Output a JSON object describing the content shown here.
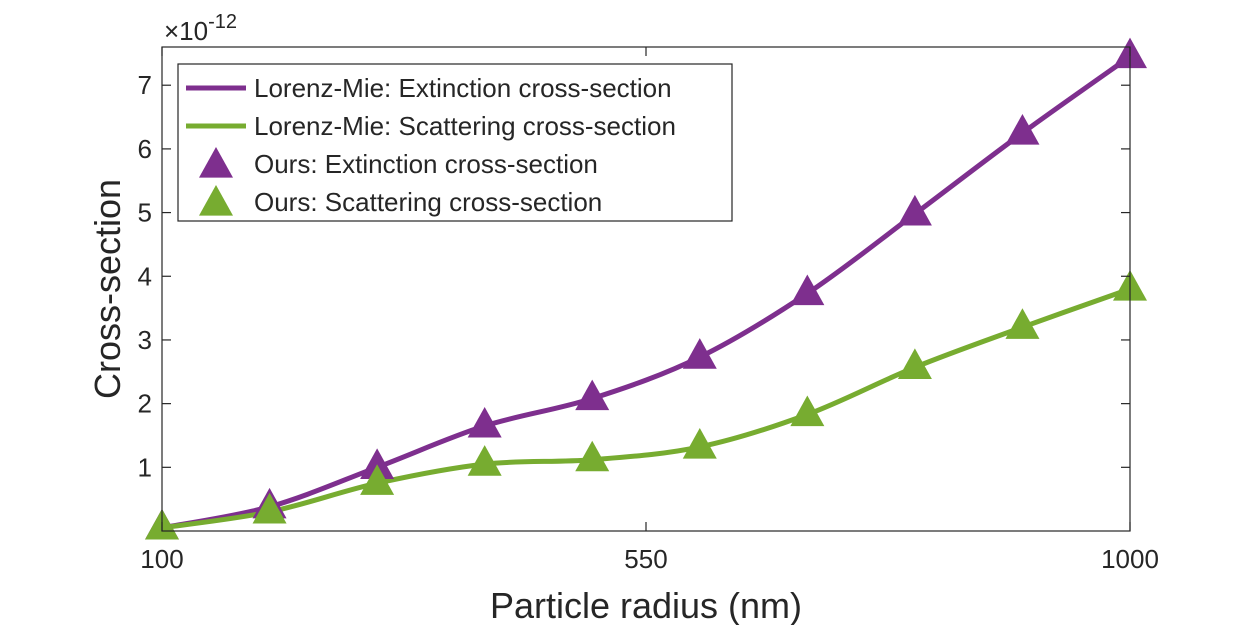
{
  "chart_data": {
    "type": "line",
    "title": "",
    "xlabel": "Particle radius (nm)",
    "ylabel": "Cross-section",
    "y_exponent": {
      "prefix": "×10",
      "power": "-12"
    },
    "xlim": [
      100,
      1000
    ],
    "ylim": [
      0,
      7.6
    ],
    "xticks": [
      100,
      550,
      1000
    ],
    "yticks": [
      1,
      2,
      3,
      4,
      5,
      6,
      7
    ],
    "grid": false,
    "legend_position": "top-left",
    "x": [
      100,
      200,
      300,
      400,
      500,
      600,
      700,
      800,
      900,
      1000
    ],
    "series": [
      {
        "name": "Lorenz-Mie: Extinction cross-section",
        "style": "line",
        "color": "#7E2F8E",
        "values": [
          0.05,
          0.38,
          1.0,
          1.65,
          2.08,
          2.73,
          3.73,
          4.98,
          6.25,
          7.45
        ]
      },
      {
        "name": "Lorenz-Mie: Scattering cross-section",
        "style": "line",
        "color": "#77AC30",
        "values": [
          0.05,
          0.3,
          0.75,
          1.05,
          1.12,
          1.32,
          1.83,
          2.57,
          3.2,
          3.8
        ]
      },
      {
        "name": "Ours: Extinction cross-section",
        "style": "marker",
        "color": "#7E2F8E",
        "values": [
          0.05,
          0.38,
          1.0,
          1.65,
          2.08,
          2.73,
          3.73,
          4.98,
          6.25,
          7.45
        ]
      },
      {
        "name": "Ours: Scattering cross-section",
        "style": "marker",
        "color": "#77AC30",
        "values": [
          0.05,
          0.3,
          0.75,
          1.05,
          1.12,
          1.32,
          1.83,
          2.57,
          3.2,
          3.8
        ]
      }
    ]
  }
}
